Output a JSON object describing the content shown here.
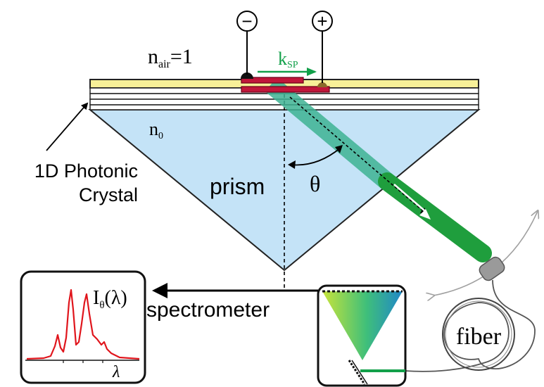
{
  "labels": {
    "n_air": "n",
    "n_air_sub": "air",
    "n_air_eq": "=1",
    "k": "k",
    "k_sub": "SP",
    "n0": "n",
    "n0_sub": "0",
    "crystal_line1": "1D Photonic",
    "crystal_line2": "Crystal",
    "prism": "prism",
    "theta": "θ",
    "spectrometer": "spectrometer",
    "fiber": "fiber",
    "intensity": "I",
    "intensity_sub": "θ",
    "intensity_arg": "(λ)",
    "lambda_axis": "λ",
    "minus": "−",
    "plus": "+"
  },
  "colors": {
    "gold": "#f7f098",
    "prism_fill": "#c4e3f7",
    "electrode": "#c0163a",
    "beam_light": "#3fb394",
    "beam_dark": "#1f9e3d",
    "k_arrow": "#12a04a",
    "spectrum": "#e0151c",
    "connector": "#9a9a9a"
  },
  "icons": {
    "minus_terminal": "minus-circle-icon",
    "plus_terminal": "plus-circle-icon",
    "fiber_connector": "fiber-connector-icon"
  }
}
